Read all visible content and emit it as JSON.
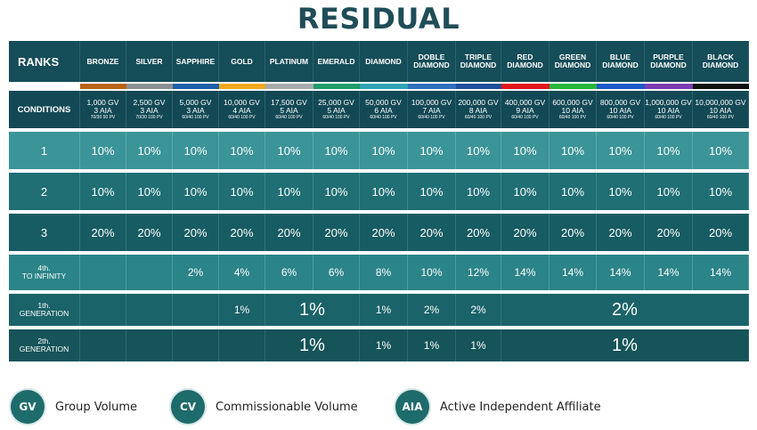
{
  "title": "RESIDUAL",
  "header": {
    "label": "RANKS",
    "ranks": [
      {
        "name": "BRONZE",
        "color": "#b8621b"
      },
      {
        "name": "SILVER",
        "color": "#8a8f94"
      },
      {
        "name": "SAPPHIRE",
        "color": "#1f5fa8"
      },
      {
        "name": "GOLD",
        "color": "#f0a81c"
      },
      {
        "name": "PLATINUM",
        "color": "#a7aaad"
      },
      {
        "name": "EMERALD",
        "color": "#1e9c6a"
      },
      {
        "name": "DIAMOND",
        "color": "#2fa3b5"
      },
      {
        "name": "DOBLE DIAMOND",
        "color": "#2f6fc0"
      },
      {
        "name": "TRIPLE DIAMOND",
        "color": "#1f4f9a"
      },
      {
        "name": "RED DIAMOND",
        "color": "#e0171f"
      },
      {
        "name": "GREEN DIAMOND",
        "color": "#27b53a"
      },
      {
        "name": "BLUE DIAMOND",
        "color": "#1f58c8"
      },
      {
        "name": "PURPLE DIAMOND",
        "color": "#7a3cb0"
      },
      {
        "name": "BLACK DIAMOND",
        "color": "#111111"
      }
    ]
  },
  "conditions": {
    "label": "CONDITIONS",
    "cells": [
      {
        "gv": "1,000 GV",
        "aia": "3 AIA",
        "pv": "70/30 50 PV"
      },
      {
        "gv": "2,500 GV",
        "aia": "3 AIA",
        "pv": "70/30 100 PV"
      },
      {
        "gv": "5,000 GV",
        "aia": "3 AIA",
        "pv": "60/40 100 PV"
      },
      {
        "gv": "10,000 GV",
        "aia": "4 AIA",
        "pv": "60/40 100 PV"
      },
      {
        "gv": "17,500 GV",
        "aia": "5 AIA",
        "pv": "60/40 100 PV"
      },
      {
        "gv": "25,000 GV",
        "aia": "5 AIA",
        "pv": "60/40 100 PV"
      },
      {
        "gv": "50,000 GV",
        "aia": "6 AIA",
        "pv": "60/40 100 PV"
      },
      {
        "gv": "100,000 GV",
        "aia": "7 AIA",
        "pv": "60/40 100 PV"
      },
      {
        "gv": "200,000 GV",
        "aia": "8 AIA",
        "pv": "60/40 100 PV"
      },
      {
        "gv": "400,000 GV",
        "aia": "9 AIA",
        "pv": "60/40 100 PV"
      },
      {
        "gv": "600,000 GV",
        "aia": "10 AIA",
        "pv": "60/40 100 PV"
      },
      {
        "gv": "800,000 GV",
        "aia": "10 AIA",
        "pv": "60/40 100 PV"
      },
      {
        "gv": "1,000,000 GV",
        "aia": "10 AIA",
        "pv": "60/40 100 PV"
      },
      {
        "gv": "10,000,000 GV",
        "aia": "10 AIA",
        "pv": "60/40 100 PV"
      }
    ]
  },
  "levels": [
    {
      "label": "1",
      "values": [
        "10%",
        "10%",
        "10%",
        "10%",
        "10%",
        "10%",
        "10%",
        "10%",
        "10%",
        "10%",
        "10%",
        "10%",
        "10%",
        "10%"
      ]
    },
    {
      "label": "2",
      "values": [
        "10%",
        "10%",
        "10%",
        "10%",
        "10%",
        "10%",
        "10%",
        "10%",
        "10%",
        "10%",
        "10%",
        "10%",
        "10%",
        "10%"
      ]
    },
    {
      "label": "3",
      "values": [
        "20%",
        "20%",
        "20%",
        "20%",
        "20%",
        "20%",
        "20%",
        "20%",
        "20%",
        "20%",
        "20%",
        "20%",
        "20%",
        "20%"
      ]
    },
    {
      "label_line1": "4th.",
      "label_line2": "TO INFINITY",
      "values": [
        "",
        "",
        "2%",
        "4%",
        "6%",
        "6%",
        "8%",
        "10%",
        "12%",
        "14%",
        "14%",
        "14%",
        "14%",
        "14%"
      ]
    }
  ],
  "generations": [
    {
      "label_line1": "1th.",
      "label_line2": "GENERATION",
      "gold": "1%",
      "plat_emerald": "1%",
      "diamond": "1%",
      "doble": "2%",
      "triple": "2%",
      "top": "2%"
    },
    {
      "label_line1": "2th.",
      "label_line2": "GENERATION",
      "plat_emerald": "1%",
      "diamond": "1%",
      "doble": "1%",
      "triple": "1%",
      "top": "1%"
    }
  ],
  "legend": [
    {
      "badge": "GV",
      "label": "Group Volume"
    },
    {
      "badge": "CV",
      "label": "Commissionable Volume"
    },
    {
      "badge": "AIA",
      "label": "Active Independent Affiliate"
    }
  ]
}
